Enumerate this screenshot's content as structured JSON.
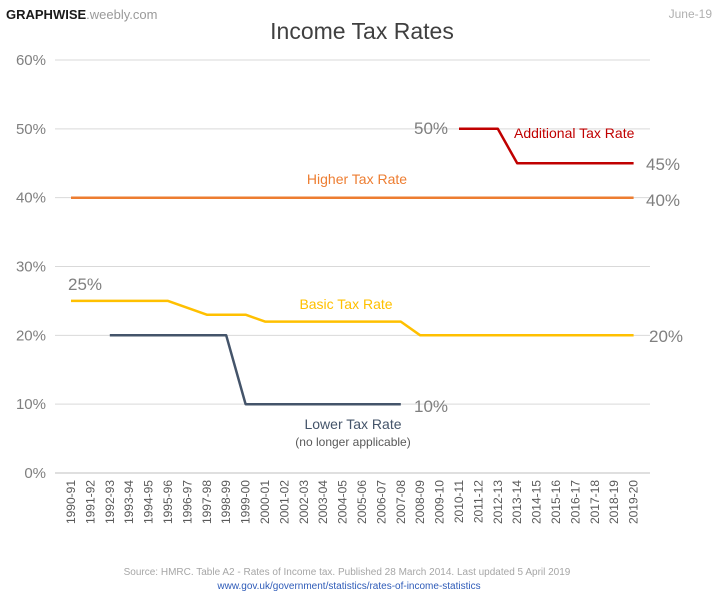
{
  "brand": {
    "name_bold": "GRAPHWISE",
    "name_light": ".weebly.com"
  },
  "date": "June-19",
  "footer": {
    "source": "Source: HMRC. Table A2 - Rates of Income tax. Published 28 March 2014. Last updated 5 April 2019",
    "url": "www.gov.uk/government/statistics/rates-of-income-statistics"
  },
  "chart_data": {
    "type": "line",
    "title": "Income Tax Rates",
    "xlabel": "",
    "ylabel": "",
    "ylim": [
      0,
      60
    ],
    "yticks": [
      "0%",
      "10%",
      "20%",
      "30%",
      "40%",
      "50%",
      "60%"
    ],
    "grid": "horizontal",
    "legend": "none (direct labels)",
    "categories": [
      "1990-91",
      "1991-92",
      "1992-93",
      "1993-94",
      "1994-95",
      "1995-96",
      "1996-97",
      "1997-98",
      "1998-99",
      "1999-00",
      "2000-01",
      "2001-02",
      "2002-03",
      "2003-04",
      "2004-05",
      "2005-06",
      "2006-07",
      "2007-08",
      "2008-09",
      "2009-10",
      "2010-11",
      "2011-12",
      "2012-13",
      "2013-14",
      "2014-15",
      "2015-16",
      "2016-17",
      "2017-18",
      "2018-19",
      "2019-20"
    ],
    "series": [
      {
        "name": "Higher Tax Rate",
        "color": "#ED7D31",
        "values": [
          40,
          40,
          40,
          40,
          40,
          40,
          40,
          40,
          40,
          40,
          40,
          40,
          40,
          40,
          40,
          40,
          40,
          40,
          40,
          40,
          40,
          40,
          40,
          40,
          40,
          40,
          40,
          40,
          40,
          40
        ],
        "end_label": "40%"
      },
      {
        "name": "Basic Tax Rate",
        "color": "#FFC000",
        "values": [
          25,
          25,
          25,
          25,
          25,
          25,
          24,
          23,
          23,
          23,
          22,
          22,
          22,
          22,
          22,
          22,
          22,
          22,
          20,
          20,
          20,
          20,
          20,
          20,
          20,
          20,
          20,
          20,
          20,
          20
        ],
        "start_label": "25%",
        "end_label": "20%"
      },
      {
        "name": "Lower Tax Rate",
        "note": "(no longer applicable)",
        "color": "#44546A",
        "values": [
          null,
          null,
          20,
          20,
          20,
          20,
          20,
          20,
          20,
          10,
          10,
          10,
          10,
          10,
          10,
          10,
          10,
          10,
          null,
          null,
          null,
          null,
          null,
          null,
          null,
          null,
          null,
          null,
          null,
          null
        ],
        "end_label": "10%"
      },
      {
        "name": "Additional Tax Rate",
        "color": "#C00000",
        "values": [
          null,
          null,
          null,
          null,
          null,
          null,
          null,
          null,
          null,
          null,
          null,
          null,
          null,
          null,
          null,
          null,
          null,
          null,
          null,
          null,
          50,
          50,
          50,
          45,
          45,
          45,
          45,
          45,
          45,
          45
        ],
        "start_label": "50%",
        "end_label": "45%"
      }
    ]
  }
}
